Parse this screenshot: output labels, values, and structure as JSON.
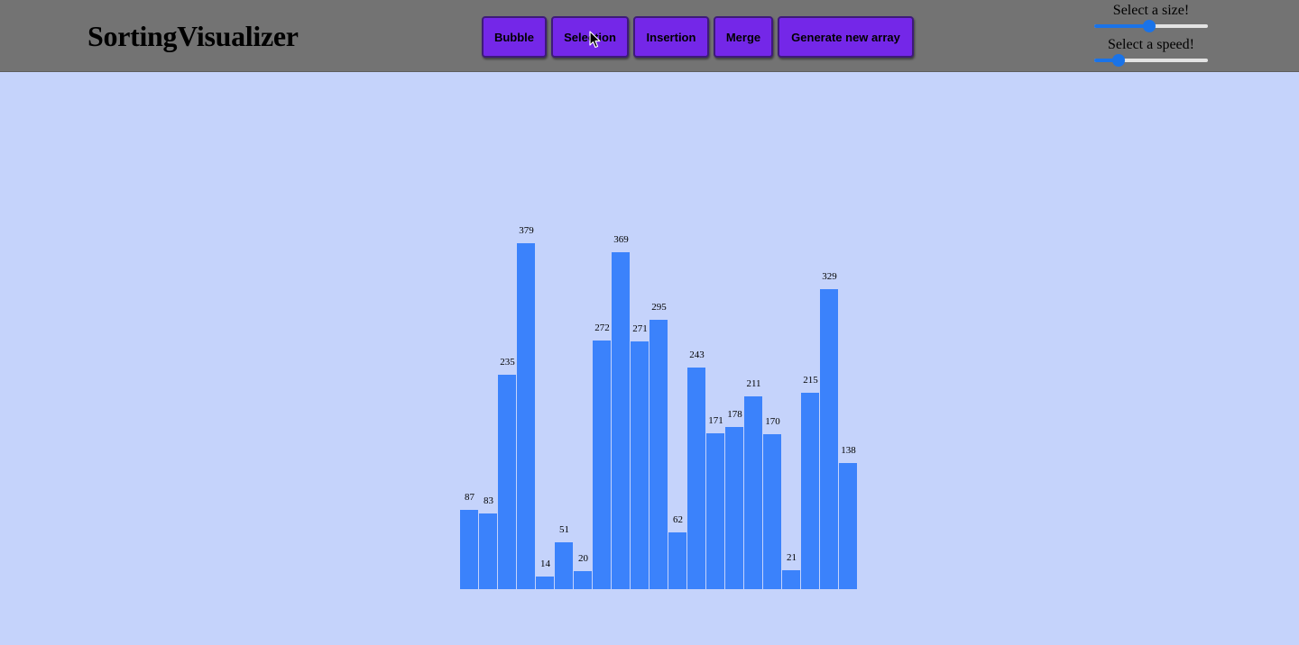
{
  "header": {
    "title": "SortingVisualizer",
    "buttons": {
      "bubble": "Bubble",
      "selection": "Selection",
      "insertion": "Insertion",
      "merge": "Merge",
      "generate": "Generate new array"
    },
    "size_label": "Select a size!",
    "speed_label": "Select a speed!",
    "size_value_fraction": 0.48,
    "speed_value_fraction": 0.18
  },
  "colors": {
    "header_bg": "#737373",
    "page_bg": "#c5d3fb",
    "button_bg": "#7427e8",
    "bar": "#3b82fb",
    "slider_accent": "#1a73e8"
  },
  "icons": {
    "cursor": "mouse-pointer-icon"
  },
  "chart_data": {
    "type": "bar",
    "values": [
      87,
      83,
      235,
      379,
      14,
      51,
      20,
      272,
      369,
      271,
      295,
      62,
      243,
      171,
      178,
      211,
      170,
      21,
      215,
      329,
      138
    ],
    "ylim": [
      0,
      379
    ]
  }
}
